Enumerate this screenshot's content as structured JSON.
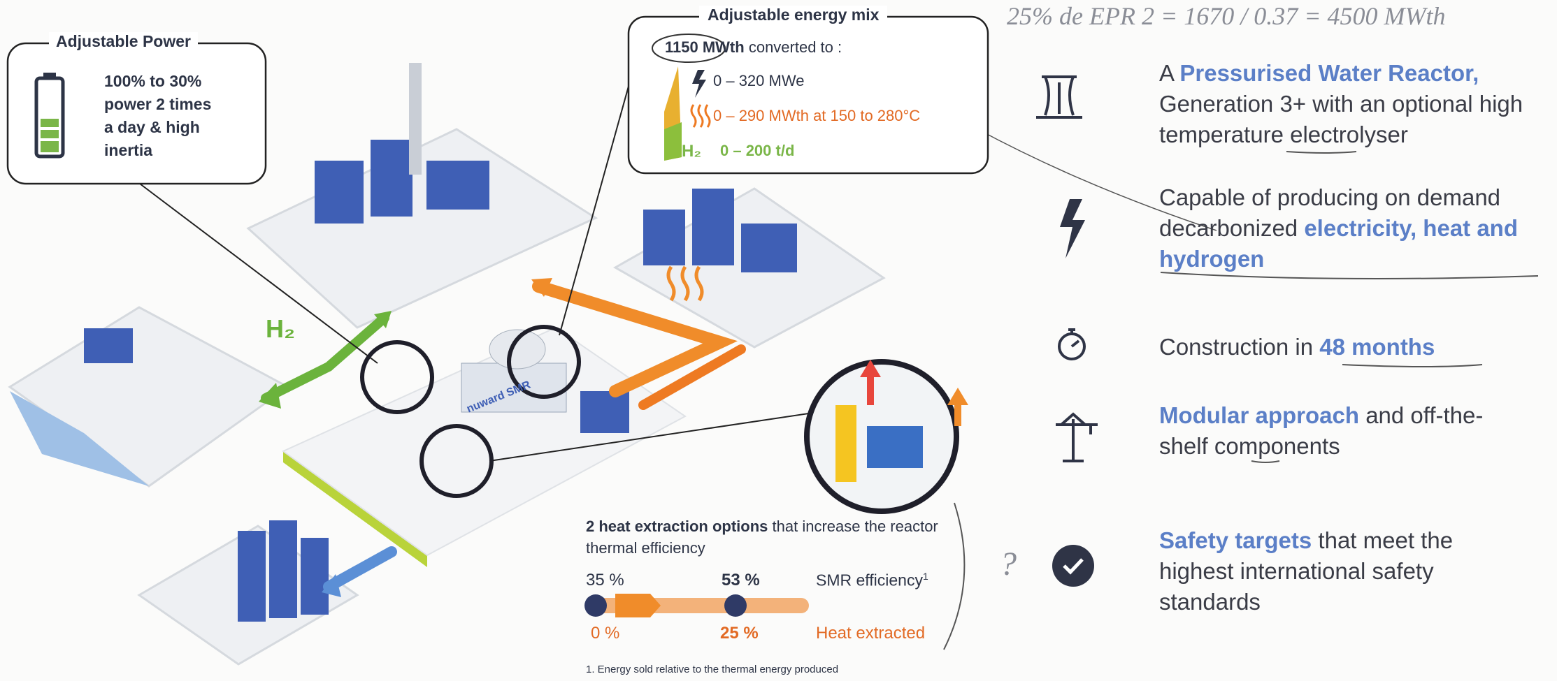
{
  "note": "25% de EPR 2 = 1670 / 0.37 = 4500 MWth",
  "power_box": {
    "title": "Adjustable Power",
    "lines": [
      "100% to 30%",
      "power 2 times",
      "a day & high",
      "inertia"
    ]
  },
  "energy_mix": {
    "title": "Adjustable energy mix",
    "input": "1150 MWth",
    "input_rest": "converted to :",
    "items": [
      "0 – 320 MWe",
      "0 – 290 MWth at 150 to 280°C",
      "0 – 200 t/d"
    ],
    "h2": "H₂"
  },
  "illustration": {
    "h2": "H₂",
    "brand": "nuward",
    "brand_suffix": "SMR"
  },
  "efficiency": {
    "heading_bold": "2 heat extraction options",
    "heading_rest": "that increase the reactor thermal efficiency",
    "top_start": "35 %",
    "top_end": "53 %",
    "top_label": "SMR efficiency",
    "top_label_sup": "1",
    "bottom_start": "0 %",
    "bottom_end": "25 %",
    "bottom_label": "Heat extracted",
    "footnote": "1. Energy sold relative to the thermal energy produced"
  },
  "features": [
    {
      "parts": [
        "A ",
        "Pressurised Water Reactor,",
        " Generation 3+ with an optional high temperature electrolyser"
      ]
    },
    {
      "parts": [
        "Capable of producing on demand decarbonized ",
        "electricity, heat and hydrogen"
      ]
    },
    {
      "parts": [
        "Construction in ",
        "48 months"
      ]
    },
    {
      "parts": [
        "Modular approach",
        " and off-the-shelf components"
      ]
    },
    {
      "parts": [
        "Safety targets",
        " that meet the highest international safety standards"
      ]
    }
  ],
  "question_mark": "?"
}
